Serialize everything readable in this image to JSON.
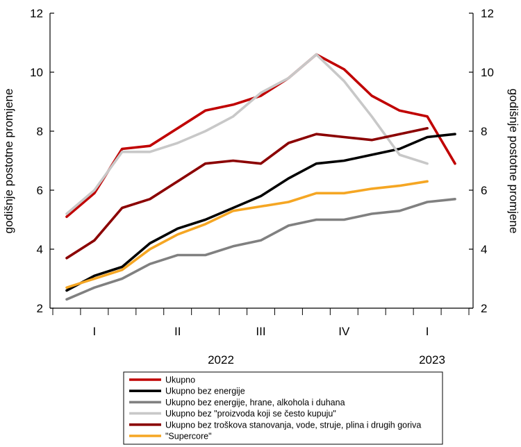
{
  "chart_data": {
    "type": "line",
    "ylabel_left": "godišnje postotne promjene",
    "ylabel_right": "godišnje postotne promjene",
    "ylim": [
      2,
      12
    ],
    "yticks": [
      2,
      4,
      6,
      8,
      10,
      12
    ],
    "x_quarter_labels": [
      "I",
      "II",
      "III",
      "IV",
      "I"
    ],
    "x_year_labels": [
      "2022",
      "2023"
    ],
    "months": [
      "2022-01",
      "2022-02",
      "2022-03",
      "2022-04",
      "2022-05",
      "2022-06",
      "2022-07",
      "2022-08",
      "2022-09",
      "2022-10",
      "2022-11",
      "2022-12",
      "2023-01",
      "2023-02",
      "2023-03"
    ],
    "series": [
      {
        "name": "Ukupno",
        "color": "#c00000",
        "values": [
          5.1,
          5.9,
          7.4,
          7.5,
          8.1,
          8.7,
          8.9,
          9.2,
          9.8,
          10.6,
          10.1,
          9.2,
          8.7,
          8.5,
          6.9
        ]
      },
      {
        "name": "Ukupno bez energije",
        "color": "#000000",
        "values": [
          2.6,
          3.1,
          3.4,
          4.2,
          4.7,
          5.0,
          5.4,
          5.8,
          6.4,
          6.9,
          7.0,
          7.2,
          7.4,
          7.8,
          7.9
        ]
      },
      {
        "name": "Ukupno bez energije, hrane, alkohola i duhana",
        "color": "#808080",
        "values": [
          2.3,
          2.7,
          3.0,
          3.5,
          3.8,
          3.8,
          4.1,
          4.3,
          4.8,
          5.0,
          5.0,
          5.2,
          5.3,
          5.6,
          5.7
        ]
      },
      {
        "name": "Ukupno bez \"proizvoda koji se često kupuju\"",
        "color": "#c8c8c8",
        "values": [
          5.2,
          6.0,
          7.3,
          7.3,
          7.6,
          8.0,
          8.5,
          9.3,
          9.8,
          10.6,
          9.7,
          8.5,
          7.2,
          6.9,
          null
        ]
      },
      {
        "name": "Ukupno bez troškova stanovanja, vode, struje, plina i drugih goriva",
        "color": "#8b0000",
        "values": [
          3.7,
          4.3,
          5.4,
          5.7,
          6.3,
          6.9,
          7.0,
          6.9,
          7.6,
          7.9,
          7.8,
          7.7,
          7.9,
          8.1,
          null
        ]
      },
      {
        "name": "\"Supercore\"",
        "color": "#f5a623",
        "values": [
          2.7,
          3.0,
          3.3,
          4.0,
          4.5,
          4.85,
          5.3,
          5.45,
          5.6,
          5.9,
          5.9,
          6.05,
          6.15,
          6.3,
          null
        ]
      }
    ]
  }
}
